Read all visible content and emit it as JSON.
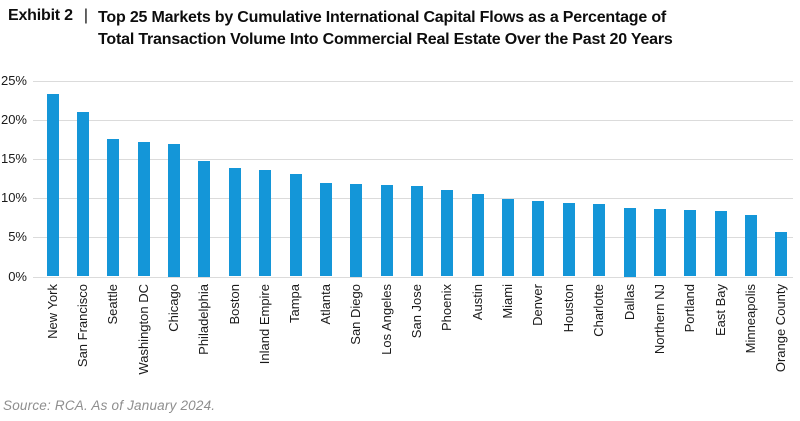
{
  "header": {
    "exhibit_label": "Exhibit 2",
    "separator": "|",
    "title_line1": "Top 25 Markets by Cumulative International Capital Flows as a Percentage of",
    "title_line2": "Total Transaction Volume Into Commercial Real Estate Over the Past 20 Years"
  },
  "chart_data": {
    "type": "bar",
    "title": "Exhibit 2 | Top 25 Markets by Cumulative International Capital Flows as a Percentage of Total Transaction Volume Into Commercial Real Estate Over the Past 20 Years",
    "categories": [
      "New York",
      "San Francisco",
      "Seattle",
      "Washington DC",
      "Chicago",
      "Philadelphia",
      "Boston",
      "Inland Empire",
      "Tampa",
      "Atlanta",
      "San Diego",
      "Los Angeles",
      "San Jose",
      "Phoenix",
      "Austin",
      "Miami",
      "Denver",
      "Houston",
      "Charlotte",
      "Dallas",
      "Northern NJ",
      "Portland",
      "East Bay",
      "Minneapolis",
      "Orange County"
    ],
    "values": [
      23.3,
      21.0,
      17.5,
      17.1,
      16.9,
      14.8,
      13.8,
      13.6,
      13.1,
      11.9,
      11.8,
      11.7,
      11.5,
      11.0,
      10.5,
      9.9,
      9.6,
      9.4,
      9.2,
      8.8,
      8.6,
      8.5,
      8.4,
      7.9,
      5.7
    ],
    "unit": "%",
    "xlabel": "",
    "ylabel": "",
    "ylim": [
      0,
      25
    ],
    "yticks": [
      0,
      5,
      10,
      15,
      20,
      25
    ],
    "grid": true,
    "legend": "none",
    "bar_color": "#1496D8",
    "gridline_color": "#dbdbdb",
    "tick_label_color": "#1a1a1a"
  },
  "footer": {
    "source": "Source: RCA. As of January 2024."
  }
}
